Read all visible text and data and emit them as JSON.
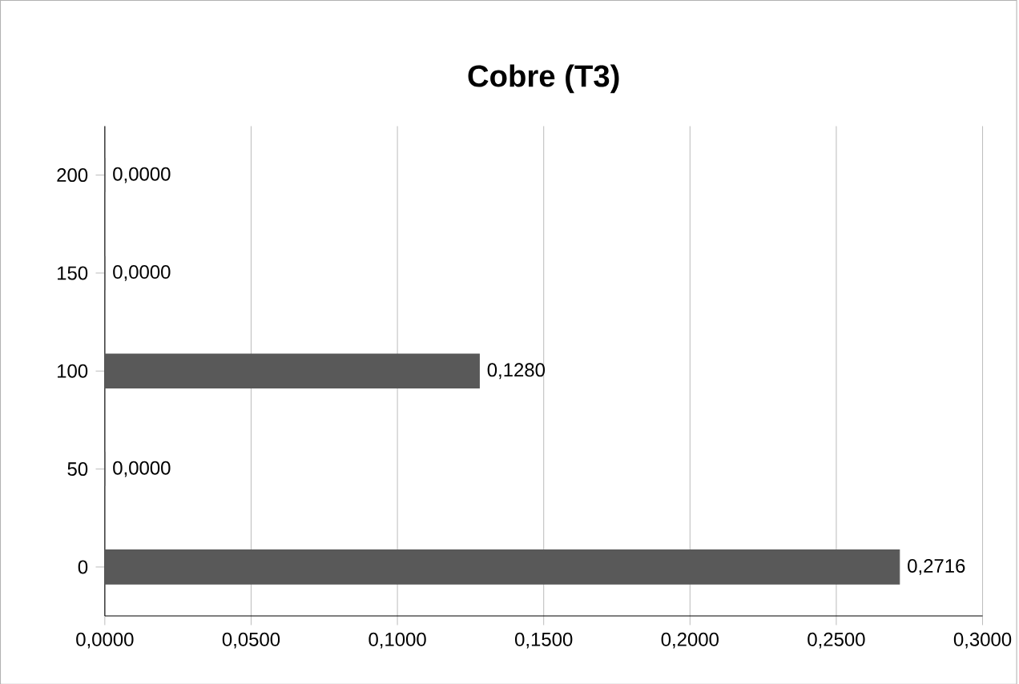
{
  "chart_data": {
    "type": "bar",
    "orientation": "horizontal",
    "title": "Cobre (T3)",
    "categories": [
      "200",
      "150",
      "100",
      "50",
      "0"
    ],
    "values": [
      0,
      0,
      0.128,
      0,
      0.2716
    ],
    "value_labels": [
      "0,0000",
      "0,0000",
      "0,1280",
      "0,0000",
      "0,2716"
    ],
    "color": "#595959",
    "xlim": [
      0,
      0.3
    ],
    "xticks": [
      {
        "value": 0,
        "label": "0,0000"
      },
      {
        "value": 0.05,
        "label": "0,0500"
      },
      {
        "value": 0.1,
        "label": "0,1000"
      },
      {
        "value": 0.15,
        "label": "0,1500"
      },
      {
        "value": 0.2,
        "label": "0,2000"
      },
      {
        "value": 0.25,
        "label": "0,2500"
      },
      {
        "value": 0.3,
        "label": "0,3000"
      }
    ],
    "grid": "x"
  }
}
